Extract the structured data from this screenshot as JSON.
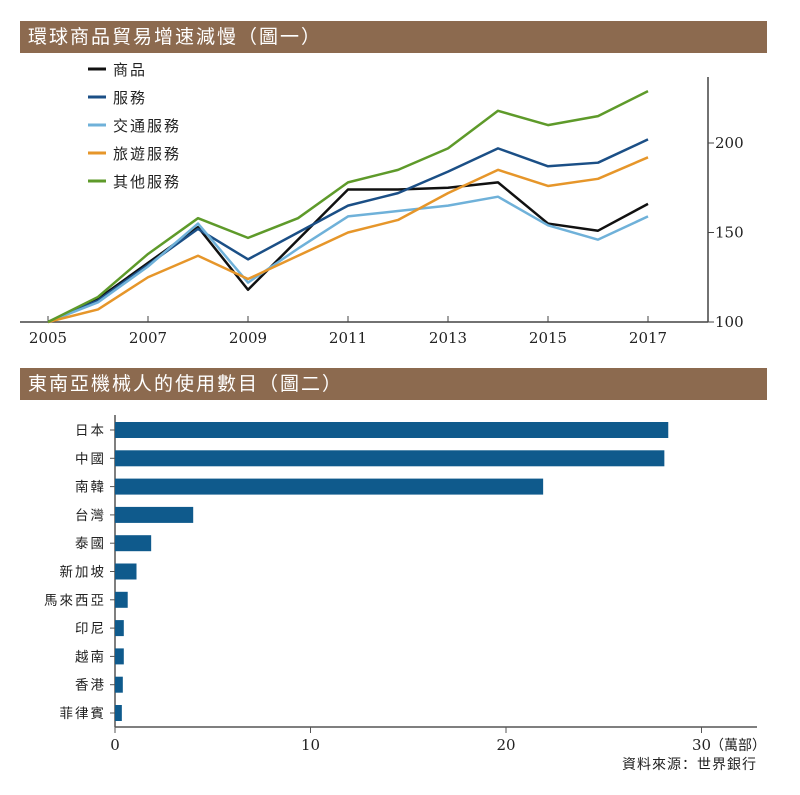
{
  "chart_data": [
    {
      "type": "line",
      "title": "環球商品貿易增速減慢（圖一）",
      "x": [
        2005,
        2006,
        2007,
        2008,
        2009,
        2010,
        2011,
        2012,
        2013,
        2014,
        2015,
        2016,
        2017
      ],
      "xticks": [
        "2005",
        "2007",
        "2009",
        "2011",
        "2013",
        "2015",
        "2017"
      ],
      "yticks": [
        "100",
        "150",
        "200"
      ],
      "ylim": [
        100,
        237
      ],
      "y_axis": "right",
      "legend": "top-left",
      "grid": false,
      "series": [
        {
          "name": "商品",
          "color": "#111111",
          "values": [
            100,
            113,
            133,
            153,
            118,
            146,
            174,
            174,
            175,
            178,
            155,
            151,
            166
          ]
        },
        {
          "name": "服務",
          "color": "#1b4f86",
          "values": [
            100,
            112,
            132,
            152,
            135,
            150,
            165,
            172,
            184,
            197,
            187,
            189,
            202
          ]
        },
        {
          "name": "交通服務",
          "color": "#6fb1d9",
          "values": [
            100,
            111,
            131,
            155,
            122,
            141,
            159,
            162,
            165,
            170,
            154,
            146,
            159
          ]
        },
        {
          "name": "旅遊服務",
          "color": "#e6962a",
          "values": [
            100,
            107,
            125,
            137,
            124,
            137,
            150,
            157,
            172,
            185,
            176,
            180,
            192
          ]
        },
        {
          "name": "其他服務",
          "color": "#5e9a2a",
          "values": [
            100,
            114,
            138,
            158,
            147,
            158,
            178,
            185,
            197,
            218,
            210,
            215,
            229
          ]
        }
      ]
    },
    {
      "type": "bar",
      "orientation": "horizontal",
      "title": "東南亞機械人的使用數目（圖二）",
      "categories": [
        "日本",
        "中國",
        "南韓",
        "台灣",
        "泰國",
        "新加坡",
        "馬來西亞",
        "印尼",
        "越南",
        "香港",
        "菲律賓"
      ],
      "values": [
        28.3,
        28.1,
        21.9,
        4.0,
        1.85,
        1.1,
        0.65,
        0.45,
        0.45,
        0.4,
        0.35
      ],
      "color": "#0f5a8c",
      "xticks": [
        "0",
        "10",
        "20",
        "30"
      ],
      "xlim": [
        0,
        33
      ],
      "unit": "（萬部）"
    }
  ],
  "source": "資料來源：世界銀行"
}
